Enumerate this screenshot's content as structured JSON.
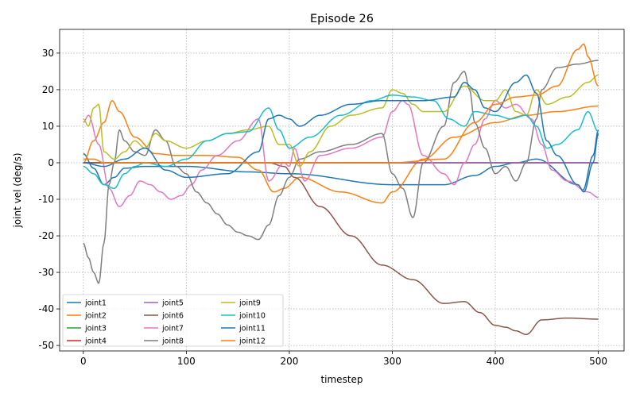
{
  "chart_data": {
    "type": "line",
    "title": "Episode 26",
    "xlabel": "timestep",
    "ylabel": "joint vel (deg/s)",
    "xlim": [
      -23,
      525
    ],
    "ylim": [
      -51.5,
      36.5
    ],
    "xticks": [
      0,
      100,
      200,
      300,
      400,
      500
    ],
    "yticks": [
      -50,
      -40,
      -30,
      -20,
      -10,
      0,
      10,
      20,
      30
    ],
    "grid": true,
    "legend": {
      "placement": "lower-left",
      "columns": 3
    },
    "series": [
      {
        "name": "joint1",
        "color": "#1f77b4",
        "points": [
          [
            0,
            2.5
          ],
          [
            10,
            -1.5
          ],
          [
            20,
            -6
          ],
          [
            30,
            -4
          ],
          [
            40,
            -1.5
          ],
          [
            60,
            -1
          ],
          [
            100,
            -1
          ],
          [
            160,
            -2.5
          ],
          [
            200,
            -3
          ],
          [
            300,
            -6
          ],
          [
            350,
            -6
          ],
          [
            380,
            -3.5
          ],
          [
            400,
            -1
          ],
          [
            420,
            0
          ],
          [
            440,
            1
          ],
          [
            480,
            -6
          ],
          [
            485,
            -7.5
          ],
          [
            495,
            2
          ],
          [
            500,
            9
          ]
        ]
      },
      {
        "name": "joint2",
        "color": "#ff7f0e",
        "points": [
          [
            0,
            0
          ],
          [
            10,
            6
          ],
          [
            20,
            11
          ],
          [
            28,
            17
          ],
          [
            35,
            14
          ],
          [
            50,
            7
          ],
          [
            70,
            2.5
          ],
          [
            90,
            2
          ],
          [
            120,
            2
          ],
          [
            150,
            1.5
          ],
          [
            170,
            -2
          ],
          [
            185,
            -8
          ],
          [
            195,
            -7
          ],
          [
            210,
            -4
          ],
          [
            250,
            -8
          ],
          [
            290,
            -11
          ],
          [
            300,
            -8
          ],
          [
            330,
            1
          ],
          [
            360,
            7
          ],
          [
            400,
            11
          ],
          [
            430,
            13
          ],
          [
            460,
            14
          ],
          [
            500,
            15.5
          ]
        ]
      },
      {
        "name": "joint3",
        "color": "#2ca02c",
        "points": [
          [
            0,
            0
          ],
          [
            500,
            0
          ]
        ]
      },
      {
        "name": "joint4",
        "color": "#d62728",
        "points": [
          [
            0,
            0
          ],
          [
            500,
            0
          ]
        ]
      },
      {
        "name": "joint5",
        "color": "#9467bd",
        "points": [
          [
            0,
            0
          ],
          [
            500,
            0
          ]
        ]
      },
      {
        "name": "joint6",
        "color": "#8c564b",
        "points": [
          [
            0,
            0
          ],
          [
            100,
            0
          ],
          [
            180,
            0
          ],
          [
            195,
            -1
          ],
          [
            205,
            -4
          ],
          [
            230,
            -12
          ],
          [
            260,
            -20
          ],
          [
            290,
            -28
          ],
          [
            320,
            -32
          ],
          [
            350,
            -38.5
          ],
          [
            370,
            -38
          ],
          [
            385,
            -41
          ],
          [
            400,
            -44.5
          ],
          [
            410,
            -45
          ],
          [
            420,
            -46
          ],
          [
            430,
            -47
          ],
          [
            445,
            -43
          ],
          [
            470,
            -42.5
          ],
          [
            500,
            -42.8
          ]
        ]
      },
      {
        "name": "joint7",
        "color": "#e377c2",
        "points": [
          [
            0,
            11
          ],
          [
            5,
            13
          ],
          [
            15,
            5
          ],
          [
            25,
            -7
          ],
          [
            35,
            -12
          ],
          [
            45,
            -9
          ],
          [
            55,
            -5
          ],
          [
            65,
            -6
          ],
          [
            75,
            -8
          ],
          [
            85,
            -10
          ],
          [
            95,
            -9
          ],
          [
            105,
            -6
          ],
          [
            115,
            -2
          ],
          [
            130,
            2
          ],
          [
            150,
            6
          ],
          [
            170,
            12
          ],
          [
            180,
            -5
          ],
          [
            195,
            0
          ],
          [
            200,
            -1
          ],
          [
            205,
            4
          ],
          [
            215,
            -5
          ],
          [
            230,
            2
          ],
          [
            260,
            4
          ],
          [
            290,
            7
          ],
          [
            300,
            14
          ],
          [
            310,
            17
          ],
          [
            315,
            16
          ],
          [
            330,
            2
          ],
          [
            350,
            -3
          ],
          [
            360,
            -6
          ],
          [
            370,
            0
          ],
          [
            380,
            5
          ],
          [
            390,
            12
          ],
          [
            400,
            17
          ],
          [
            410,
            15
          ],
          [
            420,
            16
          ],
          [
            435,
            12
          ],
          [
            445,
            5
          ],
          [
            455,
            -2
          ],
          [
            470,
            -5
          ],
          [
            490,
            -8
          ],
          [
            500,
            -9.5
          ]
        ]
      },
      {
        "name": "joint8",
        "color": "#7f7f7f",
        "points": [
          [
            0,
            -22
          ],
          [
            5,
            -26
          ],
          [
            10,
            -30
          ],
          [
            15,
            -33
          ],
          [
            20,
            -22
          ],
          [
            25,
            -6
          ],
          [
            30,
            0
          ],
          [
            35,
            9
          ],
          [
            40,
            6
          ],
          [
            50,
            3
          ],
          [
            60,
            2
          ],
          [
            70,
            9
          ],
          [
            80,
            6
          ],
          [
            90,
            -1
          ],
          [
            100,
            -3
          ],
          [
            110,
            -8
          ],
          [
            120,
            -11
          ],
          [
            130,
            -14
          ],
          [
            140,
            -17
          ],
          [
            150,
            -19
          ],
          [
            160,
            -20
          ],
          [
            170,
            -21
          ],
          [
            180,
            -17
          ],
          [
            190,
            -9
          ],
          [
            200,
            -4
          ],
          [
            210,
            1
          ],
          [
            230,
            3
          ],
          [
            260,
            5
          ],
          [
            290,
            8
          ],
          [
            300,
            -3
          ],
          [
            310,
            -7
          ],
          [
            320,
            -15
          ],
          [
            330,
            0
          ],
          [
            350,
            10
          ],
          [
            360,
            22
          ],
          [
            370,
            25
          ],
          [
            375,
            20
          ],
          [
            380,
            11
          ],
          [
            390,
            4
          ],
          [
            400,
            -3
          ],
          [
            410,
            -1
          ],
          [
            420,
            -5
          ],
          [
            430,
            0
          ],
          [
            440,
            12
          ],
          [
            445,
            20
          ],
          [
            460,
            26
          ],
          [
            480,
            27
          ],
          [
            500,
            28
          ]
        ]
      },
      {
        "name": "joint9",
        "color": "#bcbd22",
        "points": [
          [
            0,
            12
          ],
          [
            5,
            10
          ],
          [
            10,
            15
          ],
          [
            15,
            16
          ],
          [
            20,
            3
          ],
          [
            30,
            1
          ],
          [
            40,
            3
          ],
          [
            50,
            6
          ],
          [
            60,
            4
          ],
          [
            70,
            8
          ],
          [
            80,
            6
          ],
          [
            100,
            4
          ],
          [
            120,
            6
          ],
          [
            140,
            8
          ],
          [
            160,
            9
          ],
          [
            180,
            10
          ],
          [
            190,
            5
          ],
          [
            200,
            5
          ],
          [
            210,
            -1
          ],
          [
            220,
            3
          ],
          [
            240,
            10
          ],
          [
            260,
            13
          ],
          [
            290,
            15
          ],
          [
            300,
            20
          ],
          [
            310,
            19
          ],
          [
            320,
            16
          ],
          [
            330,
            14
          ],
          [
            350,
            14
          ],
          [
            370,
            21
          ],
          [
            390,
            17
          ],
          [
            400,
            17
          ],
          [
            410,
            20
          ],
          [
            420,
            14
          ],
          [
            430,
            13
          ],
          [
            440,
            20
          ],
          [
            450,
            16
          ],
          [
            470,
            18
          ],
          [
            490,
            22
          ],
          [
            500,
            24
          ]
        ]
      },
      {
        "name": "joint10",
        "color": "#17becf",
        "points": [
          [
            0,
            -1
          ],
          [
            10,
            -3
          ],
          [
            20,
            -6
          ],
          [
            30,
            -7
          ],
          [
            40,
            -3
          ],
          [
            50,
            -1
          ],
          [
            60,
            0
          ],
          [
            80,
            -1
          ],
          [
            100,
            1
          ],
          [
            120,
            6
          ],
          [
            140,
            8
          ],
          [
            160,
            8.5
          ],
          [
            180,
            15
          ],
          [
            190,
            9
          ],
          [
            200,
            4
          ],
          [
            220,
            7
          ],
          [
            250,
            13
          ],
          [
            280,
            17
          ],
          [
            300,
            18.5
          ],
          [
            320,
            18
          ],
          [
            340,
            17
          ],
          [
            355,
            12
          ],
          [
            370,
            10
          ],
          [
            380,
            14
          ],
          [
            400,
            13
          ],
          [
            415,
            12
          ],
          [
            430,
            13
          ],
          [
            440,
            10
          ],
          [
            450,
            4
          ],
          [
            460,
            5
          ],
          [
            480,
            9
          ],
          [
            490,
            14
          ],
          [
            500,
            8.5
          ]
        ]
      },
      {
        "name": "joint11",
        "color": "#1f77b4",
        "points": [
          [
            0,
            0
          ],
          [
            20,
            -1
          ],
          [
            40,
            1
          ],
          [
            60,
            4
          ],
          [
            80,
            -2
          ],
          [
            100,
            -4
          ],
          [
            140,
            -3
          ],
          [
            170,
            3
          ],
          [
            180,
            12
          ],
          [
            190,
            13
          ],
          [
            200,
            12
          ],
          [
            210,
            10
          ],
          [
            230,
            13
          ],
          [
            260,
            16
          ],
          [
            290,
            17
          ],
          [
            330,
            17
          ],
          [
            360,
            18
          ],
          [
            370,
            22
          ],
          [
            380,
            20
          ],
          [
            390,
            15
          ],
          [
            400,
            14
          ],
          [
            420,
            22
          ],
          [
            430,
            24
          ],
          [
            440,
            19
          ],
          [
            450,
            6
          ],
          [
            460,
            2
          ],
          [
            480,
            -6
          ],
          [
            486,
            -8
          ],
          [
            495,
            0
          ],
          [
            500,
            8
          ]
        ]
      },
      {
        "name": "joint12",
        "color": "#ff7f0e",
        "points": [
          [
            0,
            1
          ],
          [
            10,
            1
          ],
          [
            20,
            0
          ],
          [
            30,
            0
          ],
          [
            60,
            0
          ],
          [
            100,
            0
          ],
          [
            140,
            0
          ],
          [
            180,
            0
          ],
          [
            200,
            0
          ],
          [
            260,
            0
          ],
          [
            300,
            0
          ],
          [
            350,
            1
          ],
          [
            380,
            11
          ],
          [
            400,
            16
          ],
          [
            420,
            18
          ],
          [
            440,
            18.5
          ],
          [
            460,
            21
          ],
          [
            480,
            31
          ],
          [
            486,
            32.5
          ],
          [
            490,
            29
          ],
          [
            500,
            21
          ]
        ]
      }
    ]
  }
}
